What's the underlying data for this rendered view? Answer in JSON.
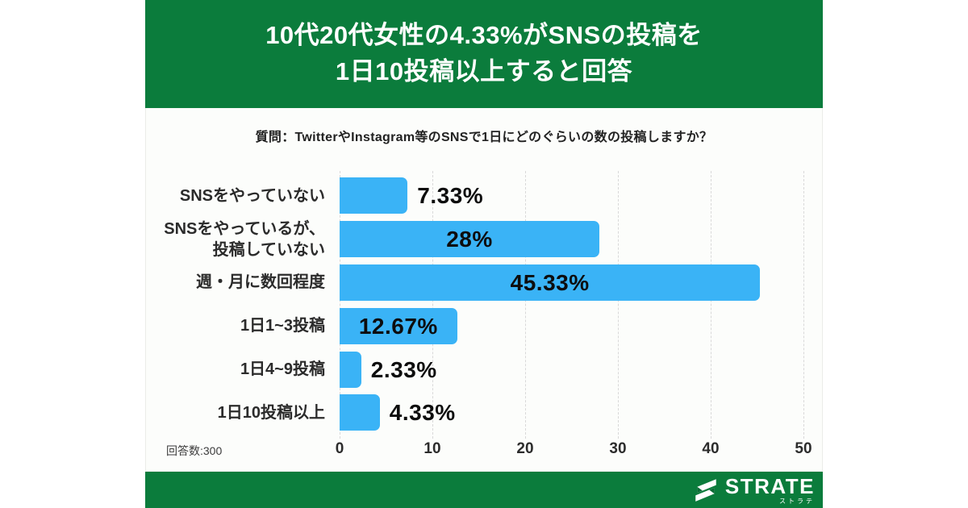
{
  "header": {
    "title_line1": "10代20代女性の4.33%がSNSの投稿を",
    "title_line2": "1日10投稿以上すると回答"
  },
  "chart_data": {
    "type": "bar",
    "orientation": "horizontal",
    "title": "質問：TwitterやInstagram等のSNSで1日にどのぐらいの数の投稿しますか？",
    "categories": [
      "SNSをやっていない",
      "SNSをやっているが、\n投稿していない",
      "週・月に数回程度",
      "1日1~3投稿",
      "1日4~9投稿",
      "1日10投稿以上"
    ],
    "values": [
      7.33,
      28,
      45.33,
      12.67,
      2.33,
      4.33
    ],
    "value_labels": [
      "7.33%",
      "28%",
      "45.33%",
      "12.67%",
      "2.33%",
      "4.33%"
    ],
    "xlabel": "",
    "ylabel": "",
    "xlim": [
      0,
      50
    ],
    "xticks": [
      0,
      10,
      20,
      30,
      40,
      50
    ],
    "grid": true,
    "legend": "none",
    "bar_color": "#3ab3f6"
  },
  "footnote": {
    "respondents": "回答数:300"
  },
  "footer": {
    "logo_text": "STRATE",
    "logo_subtext": "ストラテ"
  },
  "colors": {
    "brand_green": "#0b7c3c",
    "bar_blue": "#3ab3f6"
  }
}
